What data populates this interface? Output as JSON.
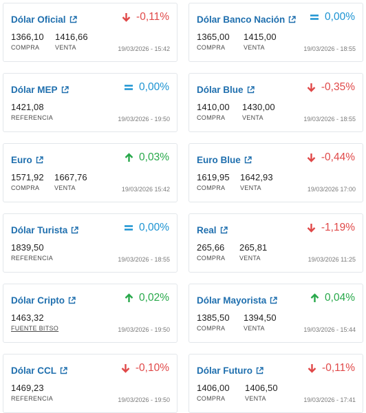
{
  "cards": [
    {
      "title": "Dólar Oficial",
      "change": "-0,11%",
      "dir": "down",
      "v1": "1366,10",
      "l1": "COMPRA",
      "v2": "1416,66",
      "l2": "VENTA",
      "date": "19/03/2026 - 15:42"
    },
    {
      "title": "Dólar Banco Nación",
      "change": "0,00%",
      "dir": "flat",
      "v1": "1365,00",
      "l1": "COMPRA",
      "v2": "1415,00",
      "l2": "VENTA",
      "date": "19/03/2026 - 18:55"
    },
    {
      "title": "Dólar MEP",
      "change": "0,00%",
      "dir": "flat",
      "v1": "1421,08",
      "l1": "REFERENCIA",
      "date": "19/03/2026 - 19:50"
    },
    {
      "title": "Dólar Blue",
      "change": "-0,35%",
      "dir": "down",
      "v1": "1410,00",
      "l1": "COMPRA",
      "v2": "1430,00",
      "l2": "VENTA",
      "date": "19/03/2026 - 18:55"
    },
    {
      "title": "Euro",
      "change": "0,03%",
      "dir": "up",
      "v1": "1571,92",
      "l1": "COMPRA",
      "v2": "1667,76",
      "l2": "VENTA",
      "date": "19/03/2026 15:42"
    },
    {
      "title": "Euro Blue",
      "change": "-0,44%",
      "dir": "down",
      "v1": "1619,95",
      "l1": "COMPRA",
      "v2": "1642,93",
      "l2": "VENTA",
      "date": "19/03/2026 17:00"
    },
    {
      "title": "Dólar Turista",
      "change": "0,00%",
      "dir": "flat",
      "v1": "1839,50",
      "l1": "REFERENCIA",
      "date": "19/03/2026 - 18:55"
    },
    {
      "title": "Real",
      "change": "-1,19%",
      "dir": "down",
      "v1": "265,66",
      "l1": "COMPRA",
      "v2": "265,81",
      "l2": "VENTA",
      "date": "19/03/2026 11:25"
    },
    {
      "title": "Dólar Cripto",
      "change": "0,02%",
      "dir": "up",
      "v1": "1463,32",
      "l1": "FUENTE BITSO",
      "date": "19/03/2026 - 19:50"
    },
    {
      "title": "Dólar Mayorista",
      "change": "0,04%",
      "dir": "up",
      "v1": "1385,50",
      "l1": "COMPRA",
      "v2": "1394,50",
      "l2": "VENTA",
      "date": "19/03/2026 - 15:44"
    },
    {
      "title": "Dólar CCL",
      "change": "-0,10%",
      "dir": "down",
      "v1": "1469,23",
      "l1": "REFERENCIA",
      "date": "19/03/2026 - 19:50"
    },
    {
      "title": "Dólar Futuro",
      "change": "-0,11%",
      "dir": "down",
      "v1": "1406,00",
      "l1": "COMPRA",
      "v2": "1406,50",
      "l2": "VENTA",
      "date": "19/03/2026 - 17:41"
    }
  ],
  "colors": {
    "title": "#1f6fae",
    "down": "#e04848",
    "up": "#27a84a",
    "flat": "#1c93d2"
  },
  "icons": {
    "external": "external-link-icon",
    "down": "arrow-down-icon",
    "up": "arrow-up-icon",
    "flat": "equals-icon"
  }
}
